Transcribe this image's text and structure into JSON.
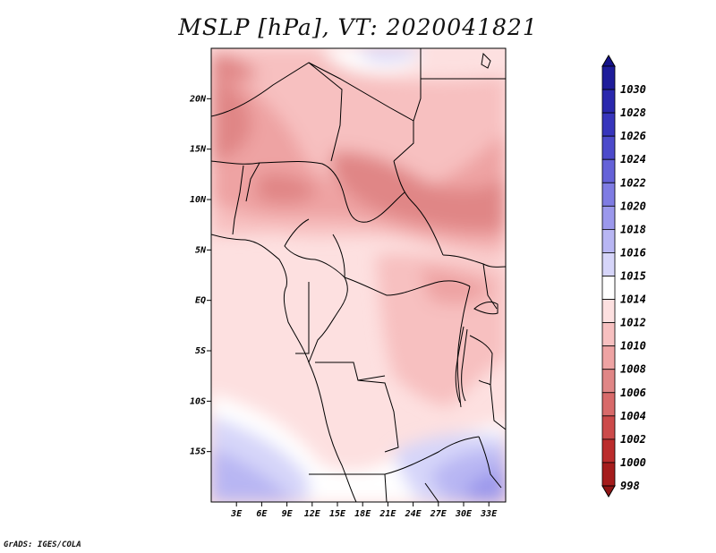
{
  "title": "MSLP [hPa], VT: 2020041821",
  "credit": "GrADS: IGES/COLA",
  "map": {
    "lon_range": [
      0,
      35
    ],
    "lat_range": [
      -20,
      25
    ],
    "lat_labels": [
      {
        "lat": 20,
        "text": "20N"
      },
      {
        "lat": 15,
        "text": "15N"
      },
      {
        "lat": 10,
        "text": "10N"
      },
      {
        "lat": 5,
        "text": "5N"
      },
      {
        "lat": 0,
        "text": "EQ"
      },
      {
        "lat": -5,
        "text": "5S"
      },
      {
        "lat": -10,
        "text": "10S"
      },
      {
        "lat": -15,
        "text": "15S"
      }
    ],
    "lon_labels": [
      {
        "lon": 3,
        "text": "3E"
      },
      {
        "lon": 6,
        "text": "6E"
      },
      {
        "lon": 9,
        "text": "9E"
      },
      {
        "lon": 12,
        "text": "12E"
      },
      {
        "lon": 15,
        "text": "15E"
      },
      {
        "lon": 18,
        "text": "18E"
      },
      {
        "lon": 21,
        "text": "21E"
      },
      {
        "lon": 24,
        "text": "24E"
      },
      {
        "lon": 27,
        "text": "27E"
      },
      {
        "lon": 30,
        "text": "30E"
      },
      {
        "lon": 33,
        "text": "33E"
      }
    ]
  },
  "colorbar": {
    "levels": [
      {
        "label": "1030",
        "color": "#1e1c9a"
      },
      {
        "label": "1028",
        "color": "#2a28ad"
      },
      {
        "label": "1026",
        "color": "#3735bc"
      },
      {
        "label": "1024",
        "color": "#4c4acb"
      },
      {
        "label": "1022",
        "color": "#6562d8"
      },
      {
        "label": "1020",
        "color": "#7f7ce3"
      },
      {
        "label": "1018",
        "color": "#9b98ec"
      },
      {
        "label": "1016",
        "color": "#b8b6f3"
      },
      {
        "label": "1015",
        "color": "#d6d5f9"
      },
      {
        "label": "1014",
        "color": "#ffffff"
      },
      {
        "label": "1012",
        "color": "#fde0e0"
      },
      {
        "label": "1010",
        "color": "#f7c0c0"
      },
      {
        "label": "1008",
        "color": "#eea3a3"
      },
      {
        "label": "1006",
        "color": "#e08686"
      },
      {
        "label": "1004",
        "color": "#d86a6a"
      },
      {
        "label": "1002",
        "color": "#cc4a4a"
      },
      {
        "label": "1000",
        "color": "#bb2c2c"
      },
      {
        "label": "998",
        "color": "#a51c1c"
      }
    ],
    "top_color": "#15138a",
    "bottom_color": "#8f1414"
  }
}
